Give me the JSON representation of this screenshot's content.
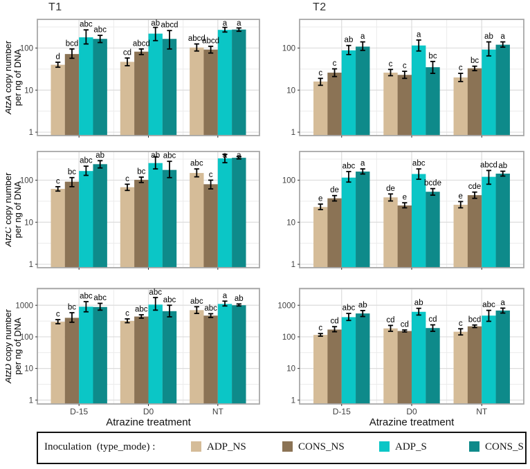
{
  "figure": {
    "column_titles": [
      "T1",
      "T2"
    ],
    "legend": {
      "title": "Inoculation  (type_mode) :",
      "items": [
        {
          "label": "ADP_NS",
          "color": "#d5bc98"
        },
        {
          "label": "CONS_NS",
          "color": "#8b7355"
        },
        {
          "label": "ADP_S",
          "color": "#0bc6c6"
        },
        {
          "label": "CONS_S",
          "color": "#0e8a8a"
        }
      ]
    },
    "colors": {
      "grid_major": "#dcdcdc",
      "grid_minor": "#ebebeb",
      "panel_border": "#a8a8a8",
      "tick_text": "#404040",
      "error_bar": "#000000"
    }
  },
  "chart_data": [
    {
      "type": "bar",
      "facet_col": "T1",
      "gene": "AtzA",
      "ylabel_line1_italic": "AtzA",
      "ylabel_line1_rest": " copy number",
      "ylabel_line2": "per ng of DNA",
      "xlabel": "Atrazine treatment",
      "categories": [
        "D-15",
        "D0",
        "NT"
      ],
      "log_scale": true,
      "ylim": [
        0.83,
        480
      ],
      "yticks": [
        1,
        10,
        100
      ],
      "yminor": [
        3.16,
        31.6,
        316
      ],
      "series": [
        {
          "name": "ADP_NS",
          "values": [
            40,
            47,
            103
          ],
          "err_lo": [
            35,
            38,
            85
          ],
          "err_hi": [
            46,
            58,
            125
          ],
          "letters": [
            "d",
            "cd",
            "abcd"
          ]
        },
        {
          "name": "CONS_NS",
          "values": [
            72,
            82,
            92
          ],
          "err_lo": [
            57,
            70,
            76
          ],
          "err_hi": [
            95,
            95,
            110
          ],
          "letters": [
            "bcd",
            "abcd",
            "abcd"
          ]
        },
        {
          "name": "ADP_S",
          "values": [
            180,
            220,
            270
          ],
          "err_lo": [
            125,
            150,
            240
          ],
          "err_hi": [
            270,
            310,
            310
          ],
          "letters": [
            "abc",
            "ab",
            "a"
          ]
        },
        {
          "name": "CONS_S",
          "values": [
            165,
            165,
            275
          ],
          "err_lo": [
            135,
            95,
            250
          ],
          "err_hi": [
            200,
            260,
            300
          ],
          "letters": [
            "abc",
            "abcd",
            "a"
          ]
        }
      ]
    },
    {
      "type": "bar",
      "facet_col": "T2",
      "gene": "AtzA",
      "ylabel_line1_italic": "AtzA",
      "ylabel_line1_rest": " copy number",
      "ylabel_line2": "per ng of DNA",
      "xlabel": "Atrazine treatment",
      "categories": [
        "D-15",
        "D0",
        "NT"
      ],
      "log_scale": true,
      "ylim": [
        0.83,
        480
      ],
      "yticks": [
        1,
        10,
        100
      ],
      "yminor": [
        3.16,
        31.6,
        316
      ],
      "series": [
        {
          "name": "ADP_NS",
          "values": [
            16,
            26,
            20
          ],
          "err_lo": [
            13,
            22,
            16
          ],
          "err_hi": [
            19,
            31,
            25
          ],
          "letters": [
            "c",
            "c",
            "c"
          ]
        },
        {
          "name": "CONS_NS",
          "values": [
            26,
            23,
            33
          ],
          "err_lo": [
            21,
            19,
            29
          ],
          "err_hi": [
            32,
            28,
            37
          ],
          "letters": [
            "c",
            "c",
            "bc"
          ]
        },
        {
          "name": "ADP_S",
          "values": [
            88,
            115,
            92
          ],
          "err_lo": [
            70,
            85,
            65
          ],
          "err_hi": [
            115,
            155,
            140
          ],
          "letters": [
            "ab",
            "a",
            "ab"
          ]
        },
        {
          "name": "CONS_S",
          "values": [
            108,
            35,
            120
          ],
          "err_lo": [
            88,
            25,
            105
          ],
          "err_hi": [
            140,
            48,
            140
          ],
          "letters": [
            "a",
            "bc",
            "a"
          ]
        }
      ]
    },
    {
      "type": "bar",
      "facet_col": "T1",
      "gene": "AtzC",
      "ylabel_line1_italic": "AtzC",
      "ylabel_line1_rest": " copy number",
      "ylabel_line2": "per ng of DNA",
      "xlabel": "Atrazine treatment",
      "categories": [
        "D-15",
        "D0",
        "NT"
      ],
      "log_scale": true,
      "ylim": [
        0.83,
        480
      ],
      "yticks": [
        1,
        10,
        100
      ],
      "yminor": [
        3.16,
        31.6,
        316
      ],
      "series": [
        {
          "name": "ADP_NS",
          "values": [
            62,
            68,
            148
          ],
          "err_lo": [
            55,
            57,
            120
          ],
          "err_hi": [
            70,
            80,
            185
          ],
          "letters": [
            "c",
            "c",
            "abc"
          ]
        },
        {
          "name": "CONS_NS",
          "values": [
            92,
            102,
            80
          ],
          "err_lo": [
            70,
            88,
            62
          ],
          "err_hi": [
            115,
            118,
            100
          ],
          "letters": [
            "bc",
            "bc",
            "c"
          ]
        },
        {
          "name": "ADP_S",
          "values": [
            165,
            255,
            330
          ],
          "err_lo": [
            130,
            185,
            260
          ],
          "err_hi": [
            215,
            360,
            410
          ],
          "letters": [
            "abc",
            "ab",
            "a"
          ]
        },
        {
          "name": "CONS_S",
          "values": [
            240,
            175,
            340
          ],
          "err_lo": [
            195,
            115,
            320
          ],
          "err_hi": [
            290,
            280,
            365
          ],
          "letters": [
            "ab",
            "abc",
            "a"
          ]
        }
      ]
    },
    {
      "type": "bar",
      "facet_col": "T2",
      "gene": "AtzC",
      "ylabel_line1_italic": "AtzC",
      "ylabel_line1_rest": " copy number",
      "ylabel_line2": "per ng of DNA",
      "xlabel": "Atrazine treatment",
      "categories": [
        "D-15",
        "D0",
        "NT"
      ],
      "log_scale": true,
      "ylim": [
        0.83,
        480
      ],
      "yticks": [
        1,
        10,
        100
      ],
      "yminor": [
        3.16,
        31.6,
        316
      ],
      "series": [
        {
          "name": "ADP_NS",
          "values": [
            23,
            39,
            26
          ],
          "err_lo": [
            20,
            32,
            22
          ],
          "err_hi": [
            27,
            47,
            31
          ],
          "letters": [
            "e",
            "de",
            "e"
          ]
        },
        {
          "name": "CONS_NS",
          "values": [
            37,
            25,
            44
          ],
          "err_lo": [
            32,
            22,
            37
          ],
          "err_hi": [
            43,
            29,
            52
          ],
          "letters": [
            "de",
            "e",
            "cde"
          ]
        },
        {
          "name": "ADP_S",
          "values": [
            115,
            140,
            120
          ],
          "err_lo": [
            90,
            105,
            80
          ],
          "err_hi": [
            160,
            185,
            170
          ],
          "letters": [
            "abc",
            "abc",
            "abcd"
          ]
        },
        {
          "name": "CONS_S",
          "values": [
            160,
            53,
            143
          ],
          "err_lo": [
            140,
            44,
            125
          ],
          "err_hi": [
            185,
            63,
            163
          ],
          "letters": [
            "a",
            "bcde",
            "ab"
          ]
        }
      ]
    },
    {
      "type": "bar",
      "facet_col": "T1",
      "gene": "AtzD",
      "ylabel_line1_italic": "AtzD",
      "ylabel_line1_rest": " copy number",
      "ylabel_line2": "per ng of DNA",
      "xlabel": "Atrazine treatment",
      "categories": [
        "D-15",
        "D0",
        "NT"
      ],
      "log_scale": true,
      "ylim": [
        0.75,
        3400
      ],
      "yticks": [
        1,
        10,
        100,
        1000
      ],
      "yminor": [
        3.16,
        31.6,
        316,
        3160
      ],
      "series": [
        {
          "name": "ADP_NS",
          "values": [
            300,
            320,
            700
          ],
          "err_lo": [
            260,
            280,
            550
          ],
          "err_hi": [
            350,
            370,
            900
          ],
          "letters": [
            "c",
            "c",
            "abc"
          ]
        },
        {
          "name": "CONS_NS",
          "values": [
            400,
            440,
            470
          ],
          "err_lo": [
            290,
            390,
            410
          ],
          "err_hi": [
            580,
            500,
            540
          ],
          "letters": [
            "bc",
            "abc",
            "abc"
          ]
        },
        {
          "name": "ADP_S",
          "values": [
            900,
            1050,
            1100
          ],
          "err_lo": [
            620,
            700,
            950
          ],
          "err_hi": [
            1300,
            1750,
            1350
          ],
          "letters": [
            "abc",
            "abc",
            "a"
          ]
        },
        {
          "name": "CONS_S",
          "values": [
            880,
            650,
            1000
          ],
          "err_lo": [
            700,
            430,
            950
          ],
          "err_hi": [
            1150,
            1000,
            1100
          ],
          "letters": [
            "abc",
            "abc",
            "ab"
          ]
        }
      ]
    },
    {
      "type": "bar",
      "facet_col": "T2",
      "gene": "AtzD",
      "ylabel_line1_italic": "AtzD",
      "ylabel_line1_rest": " copy number",
      "ylabel_line2": "per ng of DNA",
      "xlabel": "Atrazine treatment",
      "categories": [
        "D-15",
        "D0",
        "NT"
      ],
      "log_scale": true,
      "ylim": [
        0.75,
        3400
      ],
      "yticks": [
        1,
        10,
        100,
        1000
      ],
      "yminor": [
        3.16,
        31.6,
        316,
        3160
      ],
      "series": [
        {
          "name": "ADP_NS",
          "values": [
            115,
            185,
            145
          ],
          "err_lo": [
            105,
            150,
            115
          ],
          "err_hi": [
            127,
            230,
            180
          ],
          "letters": [
            "c",
            "cd",
            "c"
          ]
        },
        {
          "name": "CONS_NS",
          "values": [
            170,
            153,
            215
          ],
          "err_lo": [
            145,
            143,
            197
          ],
          "err_hi": [
            210,
            165,
            237
          ],
          "letters": [
            "cd",
            "cd",
            "bcd"
          ]
        },
        {
          "name": "ADP_S",
          "values": [
            420,
            620,
            470
          ],
          "err_lo": [
            330,
            490,
            310
          ],
          "err_hi": [
            550,
            800,
            690
          ],
          "letters": [
            "abc",
            "ab",
            "abc"
          ]
        },
        {
          "name": "CONS_S",
          "values": [
            550,
            190,
            680
          ],
          "err_lo": [
            440,
            150,
            565
          ],
          "err_hi": [
            680,
            240,
            810
          ],
          "letters": [
            "ab",
            "cd",
            "a"
          ]
        }
      ]
    }
  ]
}
